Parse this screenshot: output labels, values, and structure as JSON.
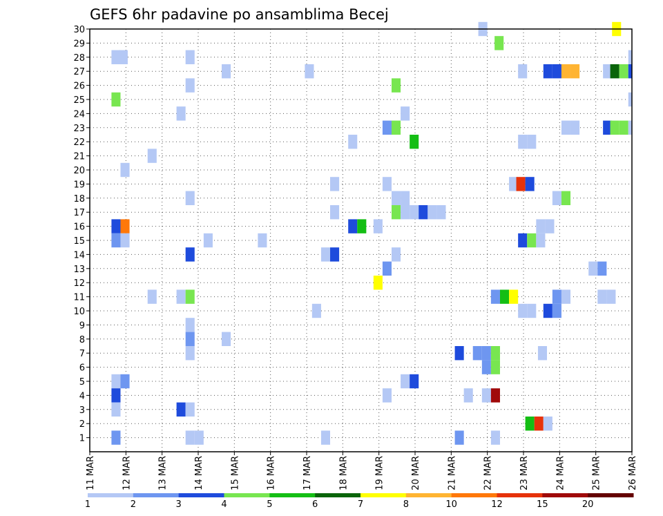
{
  "chart_data": {
    "type": "heatmap",
    "title": "GEFS 6hr padavine po ansamblima Becej",
    "xlabel": "",
    "ylabel": "",
    "x_tick_labels": [
      "11 MAR",
      "12 MAR",
      "13 MAR",
      "14 MAR",
      "15 MAR",
      "16 MAR",
      "17 MAR",
      "18 MAR",
      "19 MAR",
      "20 MAR",
      "21 MAR",
      "22 MAR",
      "23 MAR",
      "24 MAR",
      "25 MAR",
      "26 MAR"
    ],
    "y_tick_labels": [
      "1",
      "2",
      "3",
      "4",
      "5",
      "6",
      "7",
      "8",
      "9",
      "10",
      "11",
      "12",
      "13",
      "14",
      "15",
      "16",
      "17",
      "18",
      "19",
      "20",
      "21",
      "22",
      "23",
      "24",
      "25",
      "26",
      "27",
      "28",
      "29",
      "30"
    ],
    "x_range_days": [
      0,
      15
    ],
    "step_hours": 6,
    "y_range": [
      0,
      30
    ],
    "grid": true,
    "colorbar": {
      "colors": [
        "#b4c8f5",
        "#6e96f0",
        "#1e4bdc",
        "#78e650",
        "#14be14",
        "#0a640a",
        "#ffff00",
        "#ffb432",
        "#ff780a",
        "#e6320a",
        "#a00a0a",
        "#640000"
      ],
      "labels": [
        "1",
        "2",
        "3",
        "4",
        "5",
        "6",
        "7",
        "8",
        "10",
        "12",
        "15",
        "20"
      ]
    },
    "cells": [
      {
        "x": 10.75,
        "y": 30,
        "c": 0
      },
      {
        "x": 14.45,
        "y": 30,
        "c": 6
      },
      {
        "x": 11.2,
        "y": 29,
        "c": 3
      },
      {
        "x": 0.6,
        "y": 28,
        "c": 0
      },
      {
        "x": 0.8,
        "y": 28,
        "c": 0
      },
      {
        "x": 2.65,
        "y": 28,
        "c": 0
      },
      {
        "x": 14.9,
        "y": 28,
        "c": 0
      },
      {
        "x": 3.65,
        "y": 27,
        "c": 0
      },
      {
        "x": 5.95,
        "y": 27,
        "c": 0
      },
      {
        "x": 11.85,
        "y": 27,
        "c": 0
      },
      {
        "x": 12.55,
        "y": 27,
        "c": 2
      },
      {
        "x": 12.8,
        "y": 27,
        "c": 2
      },
      {
        "x": 13.05,
        "y": 27,
        "c": 7
      },
      {
        "x": 13.3,
        "y": 27,
        "c": 7
      },
      {
        "x": 14.2,
        "y": 27,
        "c": 0
      },
      {
        "x": 14.4,
        "y": 27,
        "c": 5
      },
      {
        "x": 14.65,
        "y": 27,
        "c": 3
      },
      {
        "x": 14.9,
        "y": 27,
        "c": 2
      },
      {
        "x": 2.65,
        "y": 26,
        "c": 0
      },
      {
        "x": 8.35,
        "y": 26,
        "c": 3
      },
      {
        "x": 0.6,
        "y": 25,
        "c": 3
      },
      {
        "x": 14.9,
        "y": 25,
        "c": 0
      },
      {
        "x": 2.4,
        "y": 24,
        "c": 0
      },
      {
        "x": 8.6,
        "y": 24,
        "c": 0
      },
      {
        "x": 8.1,
        "y": 23,
        "c": 1
      },
      {
        "x": 8.35,
        "y": 23,
        "c": 3
      },
      {
        "x": 13.05,
        "y": 23,
        "c": 0
      },
      {
        "x": 13.3,
        "y": 23,
        "c": 0
      },
      {
        "x": 14.2,
        "y": 23,
        "c": 2
      },
      {
        "x": 14.4,
        "y": 23,
        "c": 3
      },
      {
        "x": 14.65,
        "y": 23,
        "c": 3
      },
      {
        "x": 14.9,
        "y": 23,
        "c": 0
      },
      {
        "x": 7.15,
        "y": 22,
        "c": 0
      },
      {
        "x": 8.85,
        "y": 22,
        "c": 4
      },
      {
        "x": 11.85,
        "y": 22,
        "c": 0
      },
      {
        "x": 12.1,
        "y": 22,
        "c": 0
      },
      {
        "x": 1.6,
        "y": 21,
        "c": 0
      },
      {
        "x": 0.85,
        "y": 20,
        "c": 0
      },
      {
        "x": 6.65,
        "y": 19,
        "c": 0
      },
      {
        "x": 8.1,
        "y": 19,
        "c": 0
      },
      {
        "x": 11.6,
        "y": 19,
        "c": 0
      },
      {
        "x": 11.8,
        "y": 19,
        "c": 9
      },
      {
        "x": 12.05,
        "y": 19,
        "c": 2
      },
      {
        "x": 2.65,
        "y": 18,
        "c": 0
      },
      {
        "x": 8.35,
        "y": 18,
        "c": 0
      },
      {
        "x": 8.6,
        "y": 18,
        "c": 0
      },
      {
        "x": 12.8,
        "y": 18,
        "c": 0
      },
      {
        "x": 13.05,
        "y": 18,
        "c": 3
      },
      {
        "x": 6.65,
        "y": 17,
        "c": 0
      },
      {
        "x": 8.35,
        "y": 17,
        "c": 3
      },
      {
        "x": 8.6,
        "y": 17,
        "c": 0
      },
      {
        "x": 8.85,
        "y": 17,
        "c": 0
      },
      {
        "x": 9.1,
        "y": 17,
        "c": 2
      },
      {
        "x": 9.35,
        "y": 17,
        "c": 0
      },
      {
        "x": 9.6,
        "y": 17,
        "c": 0
      },
      {
        "x": 0.6,
        "y": 16,
        "c": 2
      },
      {
        "x": 0.85,
        "y": 16,
        "c": 8
      },
      {
        "x": 7.15,
        "y": 16,
        "c": 2
      },
      {
        "x": 7.4,
        "y": 16,
        "c": 4
      },
      {
        "x": 7.85,
        "y": 16,
        "c": 0
      },
      {
        "x": 12.35,
        "y": 16,
        "c": 0
      },
      {
        "x": 12.6,
        "y": 16,
        "c": 0
      },
      {
        "x": 0.6,
        "y": 15,
        "c": 1
      },
      {
        "x": 0.85,
        "y": 15,
        "c": 0
      },
      {
        "x": 3.15,
        "y": 15,
        "c": 0
      },
      {
        "x": 4.65,
        "y": 15,
        "c": 0
      },
      {
        "x": 11.85,
        "y": 15,
        "c": 2
      },
      {
        "x": 12.1,
        "y": 15,
        "c": 3
      },
      {
        "x": 12.35,
        "y": 15,
        "c": 0
      },
      {
        "x": 2.65,
        "y": 14,
        "c": 2
      },
      {
        "x": 6.4,
        "y": 14,
        "c": 0
      },
      {
        "x": 6.65,
        "y": 14,
        "c": 2
      },
      {
        "x": 8.35,
        "y": 14,
        "c": 0
      },
      {
        "x": 8.1,
        "y": 13,
        "c": 1
      },
      {
        "x": 13.8,
        "y": 13,
        "c": 0
      },
      {
        "x": 14.05,
        "y": 13,
        "c": 1
      },
      {
        "x": 7.85,
        "y": 12,
        "c": 6
      },
      {
        "x": 1.6,
        "y": 11,
        "c": 0
      },
      {
        "x": 2.4,
        "y": 11,
        "c": 0
      },
      {
        "x": 2.65,
        "y": 11,
        "c": 3
      },
      {
        "x": 11.1,
        "y": 11,
        "c": 1
      },
      {
        "x": 11.35,
        "y": 11,
        "c": 4
      },
      {
        "x": 11.6,
        "y": 11,
        "c": 6
      },
      {
        "x": 12.8,
        "y": 11,
        "c": 1
      },
      {
        "x": 13.05,
        "y": 11,
        "c": 0
      },
      {
        "x": 14.05,
        "y": 11,
        "c": 0
      },
      {
        "x": 14.3,
        "y": 11,
        "c": 0
      },
      {
        "x": 6.15,
        "y": 10,
        "c": 0
      },
      {
        "x": 11.85,
        "y": 10,
        "c": 0
      },
      {
        "x": 12.1,
        "y": 10,
        "c": 0
      },
      {
        "x": 12.55,
        "y": 10,
        "c": 2
      },
      {
        "x": 12.8,
        "y": 10,
        "c": 1
      },
      {
        "x": 2.65,
        "y": 9,
        "c": 0
      },
      {
        "x": 2.65,
        "y": 8,
        "c": 1
      },
      {
        "x": 3.65,
        "y": 8,
        "c": 0
      },
      {
        "x": 2.65,
        "y": 7,
        "c": 0
      },
      {
        "x": 10.1,
        "y": 7,
        "c": 2
      },
      {
        "x": 10.6,
        "y": 7,
        "c": 1
      },
      {
        "x": 10.85,
        "y": 7,
        "c": 1
      },
      {
        "x": 11.1,
        "y": 7,
        "c": 3
      },
      {
        "x": 12.4,
        "y": 7,
        "c": 0
      },
      {
        "x": 10.85,
        "y": 6,
        "c": 1
      },
      {
        "x": 11.1,
        "y": 6,
        "c": 3
      },
      {
        "x": 0.6,
        "y": 5,
        "c": 0
      },
      {
        "x": 0.85,
        "y": 5,
        "c": 1
      },
      {
        "x": 8.6,
        "y": 5,
        "c": 0
      },
      {
        "x": 8.85,
        "y": 5,
        "c": 2
      },
      {
        "x": 0.6,
        "y": 4,
        "c": 2
      },
      {
        "x": 8.1,
        "y": 4,
        "c": 0
      },
      {
        "x": 10.35,
        "y": 4,
        "c": 0
      },
      {
        "x": 10.85,
        "y": 4,
        "c": 0
      },
      {
        "x": 11.1,
        "y": 4,
        "c": 10
      },
      {
        "x": 0.6,
        "y": 3,
        "c": 0
      },
      {
        "x": 2.4,
        "y": 3,
        "c": 2
      },
      {
        "x": 2.65,
        "y": 3,
        "c": 0
      },
      {
        "x": 12.05,
        "y": 2,
        "c": 4
      },
      {
        "x": 12.3,
        "y": 2,
        "c": 9
      },
      {
        "x": 12.55,
        "y": 2,
        "c": 0
      },
      {
        "x": 0.6,
        "y": 1,
        "c": 1
      },
      {
        "x": 2.65,
        "y": 1,
        "c": 0
      },
      {
        "x": 2.9,
        "y": 1,
        "c": 0
      },
      {
        "x": 6.4,
        "y": 1,
        "c": 0
      },
      {
        "x": 10.1,
        "y": 1,
        "c": 1
      },
      {
        "x": 11.1,
        "y": 1,
        "c": 0
      }
    ]
  }
}
